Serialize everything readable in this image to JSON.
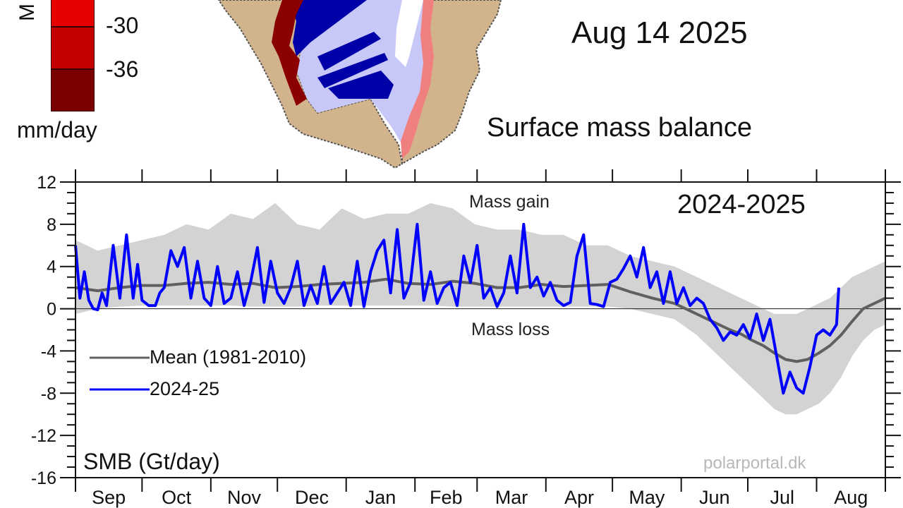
{
  "map_panel": {
    "colorbar_unit": "mm/day",
    "colorbar_partial_letter": "M",
    "colorbar_labels": [
      "-30",
      "-36"
    ],
    "colorbar_colors": [
      "#e60000",
      "#c40000",
      "#7a0000"
    ],
    "date": "Aug 14 2025",
    "title": "Surface mass balance",
    "colors": {
      "land": "#d2b48c",
      "gain_dark": "#0000a8",
      "gain_light": "#c8c8f8",
      "loss": "#e02020"
    }
  },
  "chart_data": {
    "type": "line",
    "title": "2024-2025",
    "ylabel": "SMB (Gt/day)",
    "xlabel": "",
    "ylim": [
      -16,
      12
    ],
    "yticks": [
      12,
      8,
      4,
      0,
      -4,
      -8,
      -12,
      -16
    ],
    "ytick_labels": [
      "12",
      "8",
      "4",
      "0",
      "-4",
      "-8",
      "-12",
      "-16"
    ],
    "x_range_days": [
      0,
      365
    ],
    "months": [
      "Sep",
      "Oct",
      "Nov",
      "Dec",
      "Jan",
      "Feb",
      "Mar",
      "Apr",
      "May",
      "Jun",
      "Jul",
      "Aug"
    ],
    "annotations": {
      "gain": "Mass gain",
      "loss": "Mass loss",
      "credit": "polarportal.dk"
    },
    "legend": {
      "position": "left-middle",
      "entries": [
        "Mean (1981-2010)",
        "2024-25"
      ]
    },
    "colors": {
      "mean": "#606060",
      "current": "#0000ff",
      "band": "#d3d3d3",
      "credit": "#b8b8b8"
    },
    "series": [
      {
        "name": "Mean (1981-2010)",
        "x": [
          0,
          10,
          20,
          30,
          40,
          50,
          60,
          70,
          80,
          90,
          100,
          110,
          120,
          130,
          140,
          150,
          160,
          170,
          180,
          190,
          200,
          210,
          220,
          230,
          240,
          250,
          260,
          270,
          280,
          285,
          290,
          295,
          300,
          305,
          310,
          315,
          320,
          325,
          330,
          335,
          340,
          345,
          350,
          355,
          360,
          365
        ],
        "values": [
          2.0,
          1.7,
          2.0,
          2.2,
          2.2,
          2.4,
          2.5,
          2.3,
          2.4,
          2.0,
          2.1,
          2.3,
          2.4,
          2.5,
          2.8,
          2.4,
          2.3,
          2.6,
          2.4,
          2.0,
          2.0,
          2.3,
          2.1,
          2.2,
          2.3,
          1.6,
          1.0,
          0.5,
          -0.5,
          -1.0,
          -1.5,
          -2.0,
          -2.4,
          -3.0,
          -3.5,
          -4.2,
          -4.8,
          -5.0,
          -4.8,
          -4.2,
          -3.5,
          -2.5,
          -1.2,
          0.0,
          0.5,
          1.0
        ]
      },
      {
        "name": "2024-25",
        "x": [
          0,
          2,
          4,
          6,
          8,
          10,
          12,
          14,
          17,
          20,
          23,
          26,
          28,
          30,
          33,
          36,
          38,
          40,
          43,
          46,
          49,
          52,
          55,
          58,
          61,
          64,
          67,
          70,
          73,
          76,
          79,
          82,
          85,
          88,
          91,
          94,
          97,
          100,
          103,
          106,
          109,
          112,
          115,
          118,
          121,
          124,
          127,
          130,
          133,
          136,
          139,
          142,
          145,
          148,
          151,
          154,
          157,
          160,
          163,
          166,
          169,
          172,
          175,
          178,
          181,
          184,
          187,
          190,
          193,
          196,
          199,
          202,
          205,
          208,
          211,
          214,
          217,
          220,
          223,
          226,
          229,
          232,
          235,
          238,
          241,
          244,
          247,
          250,
          253,
          256,
          259,
          262,
          265,
          268,
          271,
          274,
          277,
          280,
          283,
          286,
          289,
          292,
          295,
          298,
          301,
          304,
          307,
          310,
          313,
          316,
          319,
          322,
          325,
          328,
          331,
          334,
          337,
          340,
          343,
          344
        ],
        "values": [
          6.0,
          1.0,
          3.5,
          0.8,
          0.0,
          -0.1,
          1.5,
          0.3,
          6.0,
          1.0,
          7.0,
          1.0,
          4.2,
          0.8,
          0.3,
          0.3,
          1.5,
          2.0,
          5.5,
          4.0,
          5.8,
          1.0,
          4.5,
          1.0,
          0.3,
          4.0,
          0.5,
          1.0,
          3.5,
          0.3,
          2.6,
          5.8,
          0.6,
          4.5,
          1.5,
          0.5,
          2.0,
          4.5,
          0.3,
          2.2,
          0.5,
          4.0,
          0.5,
          1.5,
          2.5,
          0.3,
          4.5,
          0.2,
          3.5,
          5.5,
          6.5,
          1.5,
          7.5,
          1.0,
          2.5,
          8.0,
          0.8,
          3.5,
          0.5,
          2.0,
          2.5,
          0.3,
          5.0,
          2.5,
          6.0,
          1.0,
          2.0,
          0.2,
          1.5,
          5.0,
          1.5,
          8.0,
          2.0,
          3.0,
          1.2,
          2.5,
          0.8,
          0.3,
          0.6,
          5.0,
          7.0,
          0.5,
          0.4,
          0.2,
          2.5,
          2.8,
          3.8,
          5.0,
          3.0,
          5.8,
          2.0,
          3.5,
          0.5,
          3.5,
          0.5,
          2.0,
          0.3,
          1.0,
          0.5,
          -1.0,
          -1.8,
          -3.0,
          -2.2,
          -2.5,
          -1.5,
          -2.8,
          -0.5,
          -3.0,
          -1.0,
          -4.5,
          -8.0,
          -6.0,
          -7.5,
          -8.0,
          -5.5,
          -2.5,
          -2.0,
          -2.5,
          -1.5,
          2.0
        ]
      }
    ],
    "band_upper": [
      6.5,
      5.5,
      6.0,
      6.5,
      7.0,
      8.0,
      7.5,
      9.0,
      8.5,
      10.0,
      8.0,
      7.5,
      9.5,
      8.5,
      9.0,
      9.0,
      10.0,
      9.5,
      8.0,
      7.5,
      7.5,
      7.0,
      7.0,
      6.0,
      6.0,
      5.0,
      4.5,
      4.0,
      3.0,
      2.5,
      2.0,
      1.5,
      1.0,
      0.5,
      0.0,
      -0.5,
      -0.5,
      -0.5,
      0.0,
      0.5,
      1.0,
      2.0,
      3.0,
      3.5,
      4.0,
      4.5
    ],
    "band_lower": [
      -0.5,
      0.0,
      0.2,
      0.3,
      0.3,
      0.3,
      0.3,
      0.3,
      0.2,
      0.2,
      0.2,
      0.3,
      0.3,
      0.3,
      0.3,
      0.3,
      0.3,
      0.2,
      0.2,
      0.2,
      0.2,
      0.2,
      0.2,
      0.2,
      0.2,
      0.0,
      -0.5,
      -1.0,
      -2.5,
      -3.5,
      -4.5,
      -5.5,
      -6.5,
      -7.5,
      -8.5,
      -9.5,
      -10.0,
      -10.0,
      -9.5,
      -9.0,
      -8.0,
      -6.5,
      -4.5,
      -3.0,
      -2.0,
      -1.5
    ]
  }
}
